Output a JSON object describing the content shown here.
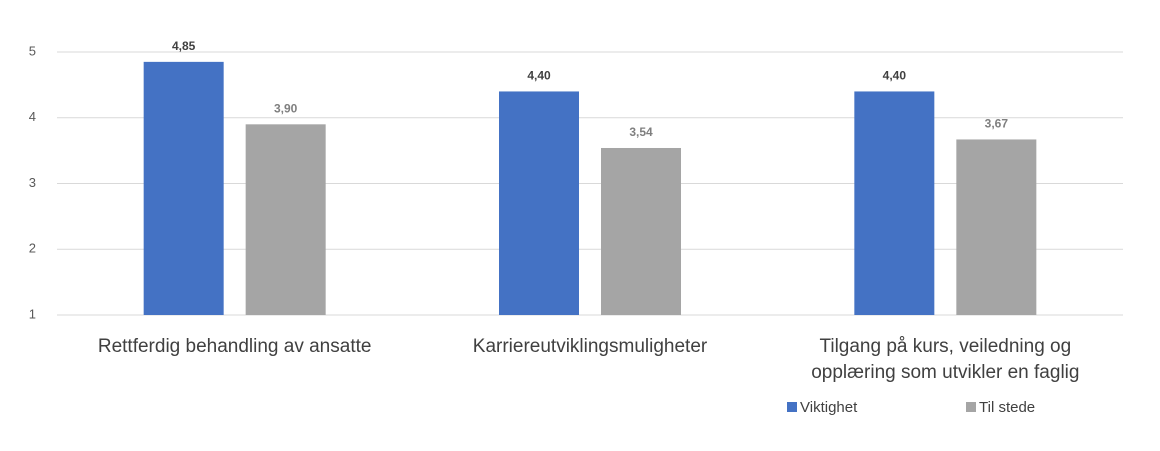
{
  "chart_data": {
    "type": "bar",
    "categories": [
      "Rettferdig behandling av ansatte",
      "Karriereutviklingsmuligheter",
      "Tilgang på kurs, veiledning og opplæring som utvikler en faglig"
    ],
    "series": [
      {
        "name": "Viktighet",
        "color": "#4472c4",
        "values": [
          4.85,
          4.4,
          4.4
        ],
        "value_labels": [
          "4,85",
          "4,40",
          "4,40"
        ]
      },
      {
        "name": "Til stede",
        "color": "#a5a5a5",
        "values": [
          3.9,
          3.54,
          3.67
        ],
        "value_labels": [
          "3,90",
          "3,54",
          "3,67"
        ]
      }
    ],
    "ylim": [
      1,
      5
    ],
    "yticks": [
      1,
      2,
      3,
      4,
      5
    ],
    "grid": true,
    "legend": "bottom-right"
  }
}
